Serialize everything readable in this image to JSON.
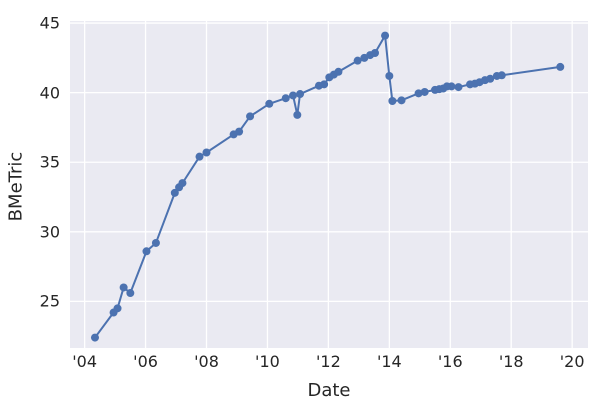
{
  "chart_data": {
    "type": "line",
    "title": "",
    "xlabel": "Date",
    "ylabel": "BMeTric",
    "legend": false,
    "grid": true,
    "plot_bg_color": "#eaeaf2",
    "grid_color": "#ffffff",
    "line_color": "#4c72b0",
    "text_color": "#262626",
    "xlim": [
      2003.52,
      2020.52
    ],
    "ylim": [
      21.65,
      45.15
    ],
    "x_ticks": {
      "values": [
        2004,
        2006,
        2008,
        2010,
        2012,
        2014,
        2016,
        2018,
        2020
      ],
      "labels": [
        "'04",
        "'06",
        "'08",
        "'10",
        "'12",
        "'14",
        "'16",
        "'18",
        "'20"
      ]
    },
    "y_ticks": {
      "values": [
        25,
        30,
        35,
        40,
        45
      ],
      "labels": [
        "25",
        "30",
        "35",
        "40",
        "45"
      ]
    },
    "series": [
      {
        "name": "BMeTric",
        "marker": "circle",
        "x": [
          2004.34,
          2004.95,
          2005.08,
          2005.28,
          2005.5,
          2006.03,
          2006.34,
          2006.96,
          2007.1,
          2007.21,
          2007.77,
          2008.0,
          2008.89,
          2009.07,
          2009.43,
          2010.06,
          2010.6,
          2010.84,
          2010.98,
          2011.07,
          2011.69,
          2011.86,
          2012.03,
          2012.18,
          2012.33,
          2012.96,
          2013.18,
          2013.37,
          2013.53,
          2013.86,
          2014.0,
          2014.1,
          2014.4,
          2014.96,
          2015.16,
          2015.5,
          2015.64,
          2015.77,
          2015.89,
          2016.04,
          2016.27,
          2016.65,
          2016.81,
          2016.96,
          2017.14,
          2017.31,
          2017.53,
          2017.69,
          2019.61
        ],
        "y": [
          22.4,
          24.2,
          24.5,
          26.0,
          25.6,
          28.6,
          29.2,
          32.8,
          33.2,
          33.5,
          35.4,
          35.7,
          37.0,
          37.2,
          38.3,
          39.2,
          39.6,
          39.8,
          38.4,
          39.9,
          40.5,
          40.6,
          41.1,
          41.3,
          41.5,
          42.3,
          42.5,
          42.7,
          42.85,
          44.1,
          41.2,
          39.4,
          39.45,
          39.95,
          40.05,
          40.2,
          40.25,
          40.3,
          40.45,
          40.45,
          40.4,
          40.6,
          40.65,
          40.75,
          40.9,
          41.0,
          41.2,
          41.25,
          41.85
        ]
      }
    ]
  }
}
